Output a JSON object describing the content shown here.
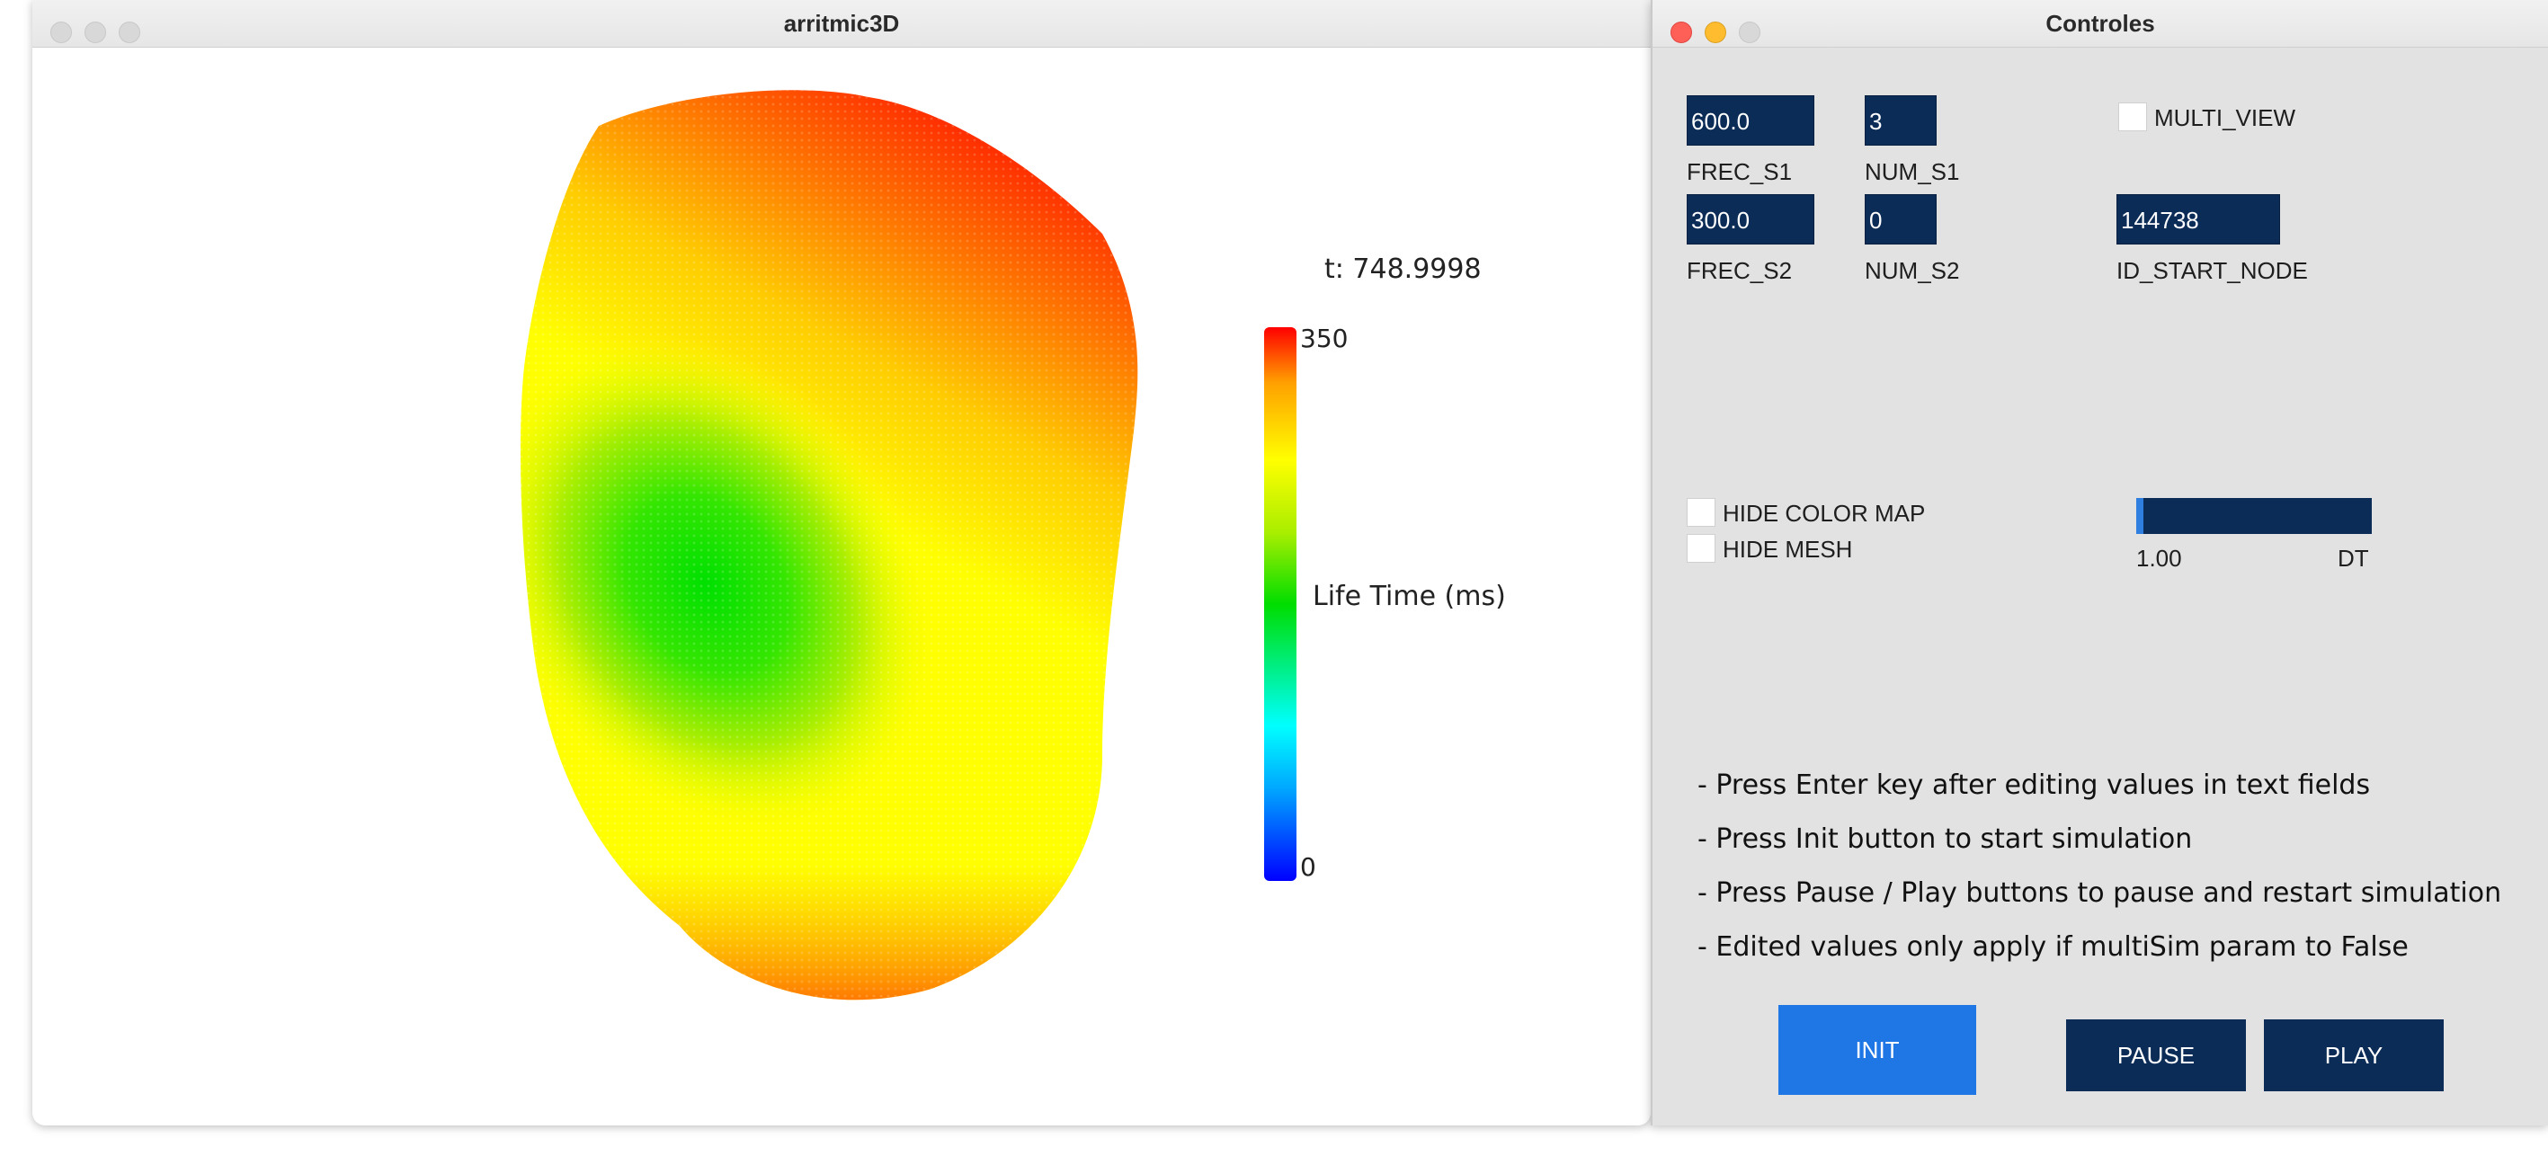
{
  "viz_window": {
    "title": "arritmic3D",
    "time_label": "t: 748.9998",
    "colorbar": {
      "max_label": "350",
      "min_label": "0",
      "title": "Life Time (ms)"
    }
  },
  "chart_data": {
    "type": "heatmap",
    "title": "t: 748.9998",
    "colorbar_label": "Life Time (ms)",
    "range": [
      0,
      350
    ],
    "colorscale": [
      "#0000ff",
      "#00ffff",
      "#00dd00",
      "#ffff00",
      "#ff0000"
    ]
  },
  "controls_window": {
    "title": "Controles",
    "fields": {
      "frec_s1": {
        "label": "FREC_S1",
        "value": "600.0"
      },
      "num_s1": {
        "label": "NUM_S1",
        "value": "3"
      },
      "frec_s2": {
        "label": "FREC_S2",
        "value": "300.0"
      },
      "num_s2": {
        "label": "NUM_S2",
        "value": "0"
      },
      "id_start_node": {
        "label": "ID_START_NODE",
        "value": "144738"
      }
    },
    "checkboxes": {
      "multi_view": "MULTI_VIEW",
      "hide_color_map": "HIDE COLOR MAP",
      "hide_mesh": "HIDE MESH"
    },
    "dt_slider": {
      "value_label": "1.00",
      "label": "DT",
      "fraction": 0.03
    },
    "instructions": [
      "- Press Enter key after editing values in text fields",
      "- Press Init button to start simulation",
      "- Press Pause / Play buttons to pause and restart simulation",
      "- Edited values only apply if multiSim param to False"
    ],
    "buttons": {
      "init": "INIT",
      "pause": "PAUSE",
      "play": "PLAY"
    }
  },
  "colors": {
    "field_bg": "#0b2c57",
    "init_button": "#1f77e6",
    "panel_bg": "#e2e2e2"
  }
}
